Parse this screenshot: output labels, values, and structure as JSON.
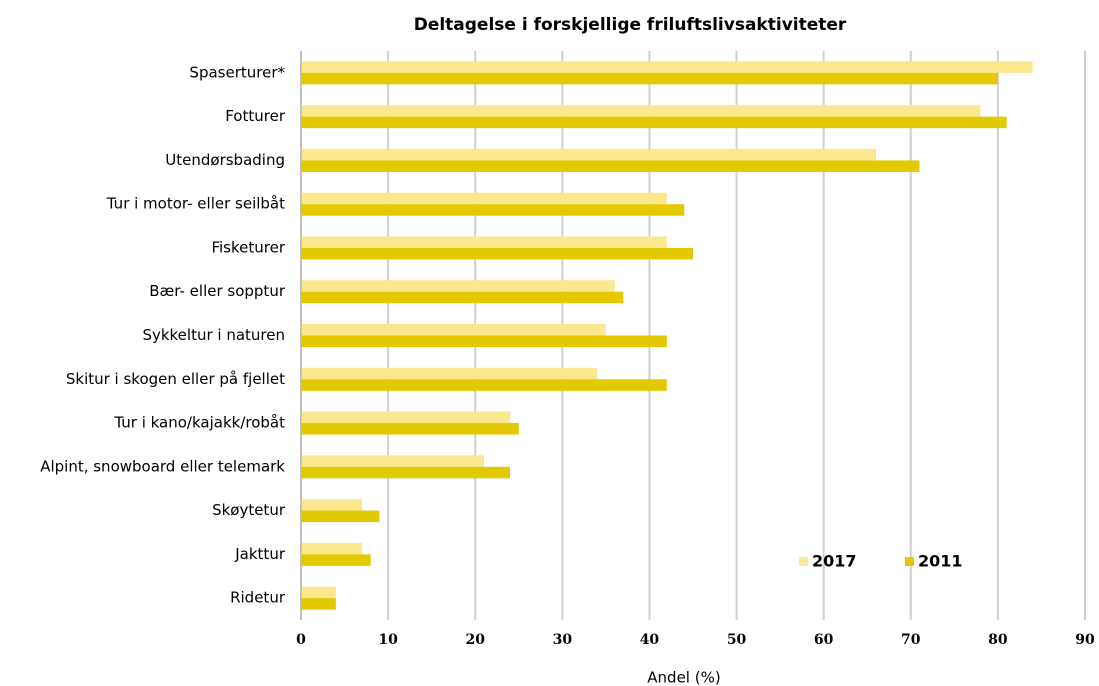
{
  "chart_data": {
    "type": "barh",
    "title": "Deltagelse i forskjellige friluftslivsaktiviteter",
    "x_label": "Andel (%)",
    "categories": [
      "Spaserturer*",
      "Fotturer",
      "Utendørsbading",
      "Tur i motor- eller seilbåt",
      "Fisketurer",
      "Bær- eller sopptur",
      "Sykkeltur i naturen",
      "Skitur i skogen eller på fjellet",
      "Tur i kano/kajakk/robåt",
      "Alpint, snowboard eller telemark",
      "Skøytetur",
      "Jakttur",
      "Ridetur"
    ],
    "series": [
      {
        "name": "2017",
        "color": "#fbe88e",
        "values": [
          84,
          78,
          66,
          42,
          42,
          36,
          35,
          34,
          24,
          21,
          7,
          7,
          4
        ]
      },
      {
        "name": "2011",
        "color": "#e2c900",
        "values": [
          80,
          81,
          71,
          44,
          45,
          37,
          42,
          42,
          25,
          24,
          9,
          8,
          4
        ]
      }
    ],
    "xlim": [
      0,
      90
    ],
    "xticks": [
      0,
      10,
      20,
      30,
      40,
      50,
      60,
      70,
      80,
      90
    ],
    "grid": true,
    "legend": "lower right"
  }
}
